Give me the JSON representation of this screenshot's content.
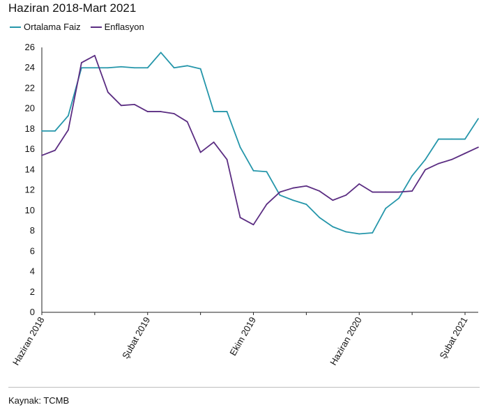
{
  "title": "Haziran 2018-Mart 2021",
  "source": "Kaynak: TCMB",
  "chart_data": {
    "type": "line",
    "title": "Haziran 2018-Mart 2021",
    "xlabel": "",
    "ylabel": "",
    "ylim": [
      0,
      26
    ],
    "yticks": [
      "0",
      "2",
      "4",
      "6",
      "8",
      "10",
      "12",
      "14",
      "16",
      "18",
      "20",
      "22",
      "24",
      "26"
    ],
    "xtick_labels": [
      {
        "index": 0,
        "label": "Haziran 2018"
      },
      {
        "index": 8,
        "label": "Şubat 2019"
      },
      {
        "index": 16,
        "label": "Ekim 2019"
      },
      {
        "index": 24,
        "label": "Haziran 2020"
      },
      {
        "index": 32,
        "label": "Şubat 2021"
      }
    ],
    "legend_position": "top-left",
    "grid": false,
    "series": [
      {
        "name": "Ortalama Faiz",
        "color": "#2596aa",
        "values": [
          17.8,
          17.8,
          19.3,
          24.0,
          24.0,
          24.0,
          24.1,
          24.0,
          24.0,
          25.5,
          24.0,
          24.2,
          23.9,
          19.7,
          19.7,
          16.2,
          13.9,
          13.8,
          11.5,
          11.0,
          10.6,
          9.3,
          8.4,
          7.9,
          7.7,
          7.8,
          10.2,
          11.2,
          13.4,
          15.0,
          17.0,
          17.0,
          17.0,
          19.0
        ]
      },
      {
        "name": "Enflasyon",
        "color": "#5b2d82",
        "values": [
          15.4,
          15.9,
          17.9,
          24.5,
          25.2,
          21.6,
          20.3,
          20.4,
          19.7,
          19.7,
          19.5,
          18.7,
          15.7,
          16.7,
          15.0,
          9.3,
          8.6,
          10.6,
          11.8,
          12.2,
          12.4,
          11.9,
          11.0,
          11.5,
          12.6,
          11.8,
          11.8,
          11.8,
          11.9,
          14.0,
          14.6,
          15.0,
          15.6,
          16.2
        ]
      }
    ]
  }
}
